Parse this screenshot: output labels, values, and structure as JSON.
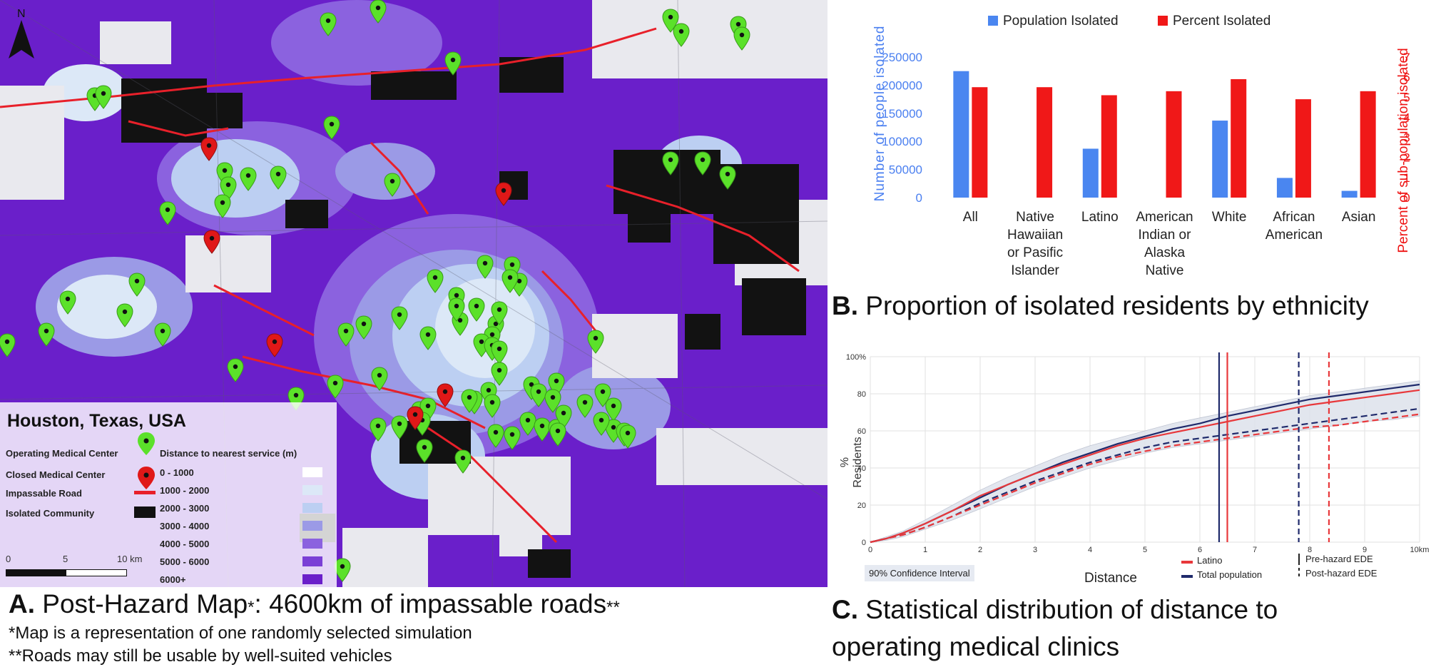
{
  "map": {
    "title": "Houston, Texas, USA",
    "north_label": "N",
    "legend": {
      "operating_label": "Operating Medical Center",
      "closed_label": "Closed Medical Center",
      "impassable_label": "Impassable Road",
      "isolated_label": "Isolated Community",
      "distance_header": "Distance to nearest service (m)",
      "ranges": [
        "0 - 1000",
        "1000 - 2000",
        "2000 - 3000",
        "3000 - 4000",
        "4000 - 5000",
        "5000 - 6000",
        "6000+"
      ],
      "range_colors": [
        "#ffffff",
        "#dce8f7",
        "#bccff2",
        "#9b9ae6",
        "#8b62df",
        "#7a3fd6",
        "#6a1fca"
      ]
    },
    "scale": {
      "zero": "0",
      "five": "5",
      "ten": "10 km"
    },
    "colors": {
      "operating": "#5be12a",
      "closed": "#e01818",
      "road": "#e8202a",
      "isolated": "#111111"
    }
  },
  "captions": {
    "a_letter": "A.",
    "a_text": "Post-Hazard Map",
    "a_star": "*",
    "a_text2": ": 4600km of impassable roads",
    "a_star2": "**",
    "note1": "*Map is a representation of one randomly selected simulation",
    "note2": "**Roads may still be usable by well-suited vehicles",
    "b_letter": "B.",
    "b_text": "Proportion of isolated residents by ethnicity",
    "c_letter": "C.",
    "c_line1": "Statistical distribution of distance to",
    "c_line2": "operating medical clinics"
  },
  "chart_data": [
    {
      "type": "bar",
      "legend": [
        "Population Isolated",
        "Percent Isolated"
      ],
      "colors": {
        "population": "#4a86f0",
        "percent": "#f01818"
      },
      "categories": [
        "All",
        "Native Hawaiian or Pasific Islander",
        "Latino",
        "American Indian or Alaska Native",
        "White",
        "African American",
        "Asian"
      ],
      "category_lines": [
        [
          "All"
        ],
        [
          "Native",
          "Hawaiian",
          "or Pasific",
          "Islander"
        ],
        [
          "Latino"
        ],
        [
          "American",
          "Indian or",
          "Alaska",
          "Native"
        ],
        [
          "White"
        ],
        [
          "African",
          "American"
        ],
        [
          "Asian"
        ]
      ],
      "series": [
        {
          "name": "Population Isolated",
          "axis": "left",
          "values": [
            225000,
            0,
            87000,
            0,
            137000,
            35000,
            12000
          ]
        },
        {
          "name": "Percent Isolated",
          "axis": "right",
          "values": [
            5.5,
            5.5,
            5.1,
            5.3,
            5.9,
            4.9,
            5.3
          ]
        }
      ],
      "ylabel_left": "Number of people isolated",
      "ylabel_right": "Percent of sub-population isolated",
      "yticks_left": [
        "0",
        "50000",
        "100000",
        "150000",
        "200000",
        "250000"
      ],
      "yticks_right": [
        "0",
        "1",
        "2",
        "3",
        "4",
        "5",
        "6",
        "7"
      ],
      "ylim_left": [
        0,
        250000
      ],
      "ylim_right": [
        0,
        7
      ]
    },
    {
      "type": "line",
      "xlabel": "Distance",
      "ylabel": "% Residents",
      "xlim": [
        0,
        10
      ],
      "ylim": [
        0,
        100
      ],
      "xticks": [
        "0",
        "1",
        "2",
        "3",
        "4",
        "5",
        "6",
        "7",
        "8",
        "9",
        "10km"
      ],
      "yticks": [
        "0",
        "20",
        "40",
        "60",
        "80",
        "100%"
      ],
      "band_label": "90% Confidence Interval",
      "legend": {
        "latino": "Latino",
        "total": "Total population",
        "pre": "Pre-hazard EDE",
        "post": "Post-hazard EDE"
      },
      "x": [
        0,
        0.3,
        0.6,
        1,
        1.5,
        2,
        2.5,
        3,
        3.5,
        4,
        4.5,
        5,
        5.5,
        6,
        6.5,
        7,
        7.5,
        8,
        8.5,
        9,
        9.5,
        10
      ],
      "series": [
        {
          "name": "Total population",
          "style": "pre",
          "color": "#1f2a6b",
          "values": [
            0,
            2,
            5,
            10,
            17,
            24,
            31,
            37,
            43,
            48,
            53,
            57,
            61,
            64,
            68,
            71,
            74,
            77,
            79,
            81,
            83,
            85
          ]
        },
        {
          "name": "Latino",
          "style": "pre",
          "color": "#e8383b",
          "values": [
            0,
            2,
            5,
            10,
            17,
            25,
            31,
            37,
            42,
            47,
            52,
            56,
            59,
            62,
            65,
            68,
            71,
            74,
            76,
            78,
            80,
            82
          ]
        },
        {
          "name": "Total population",
          "style": "post",
          "color": "#1f2a6b",
          "values": [
            0,
            2,
            4,
            8,
            14,
            21,
            27,
            33,
            38,
            43,
            47,
            51,
            54,
            56,
            58,
            60,
            62,
            64,
            66,
            68,
            70,
            72
          ]
        },
        {
          "name": "Latino",
          "style": "post",
          "color": "#e8383b",
          "values": [
            0,
            2,
            4,
            8,
            14,
            20,
            26,
            32,
            37,
            42,
            46,
            49,
            52,
            54,
            56,
            58,
            60,
            62,
            63,
            65,
            67,
            69
          ]
        }
      ],
      "band_upper": [
        0,
        3,
        6,
        12,
        20,
        28,
        35,
        41,
        47,
        52,
        56,
        60,
        64,
        67,
        70,
        73,
        76,
        79,
        81,
        83,
        85,
        87
      ],
      "band_lower": [
        0,
        1,
        3,
        7,
        12,
        18,
        24,
        30,
        35,
        40,
        44,
        48,
        51,
        53,
        55,
        57,
        59,
        61,
        63,
        65,
        66,
        68
      ],
      "ede": [
        {
          "name": "Total population",
          "style": "pre",
          "x": 6.35,
          "color": "#1f2a6b"
        },
        {
          "name": "Latino",
          "style": "pre",
          "x": 6.5,
          "color": "#e8383b"
        },
        {
          "name": "Total population",
          "style": "post",
          "x": 7.8,
          "color": "#1f2a6b"
        },
        {
          "name": "Latino",
          "style": "post",
          "x": 8.35,
          "color": "#e8383b"
        }
      ]
    }
  ]
}
